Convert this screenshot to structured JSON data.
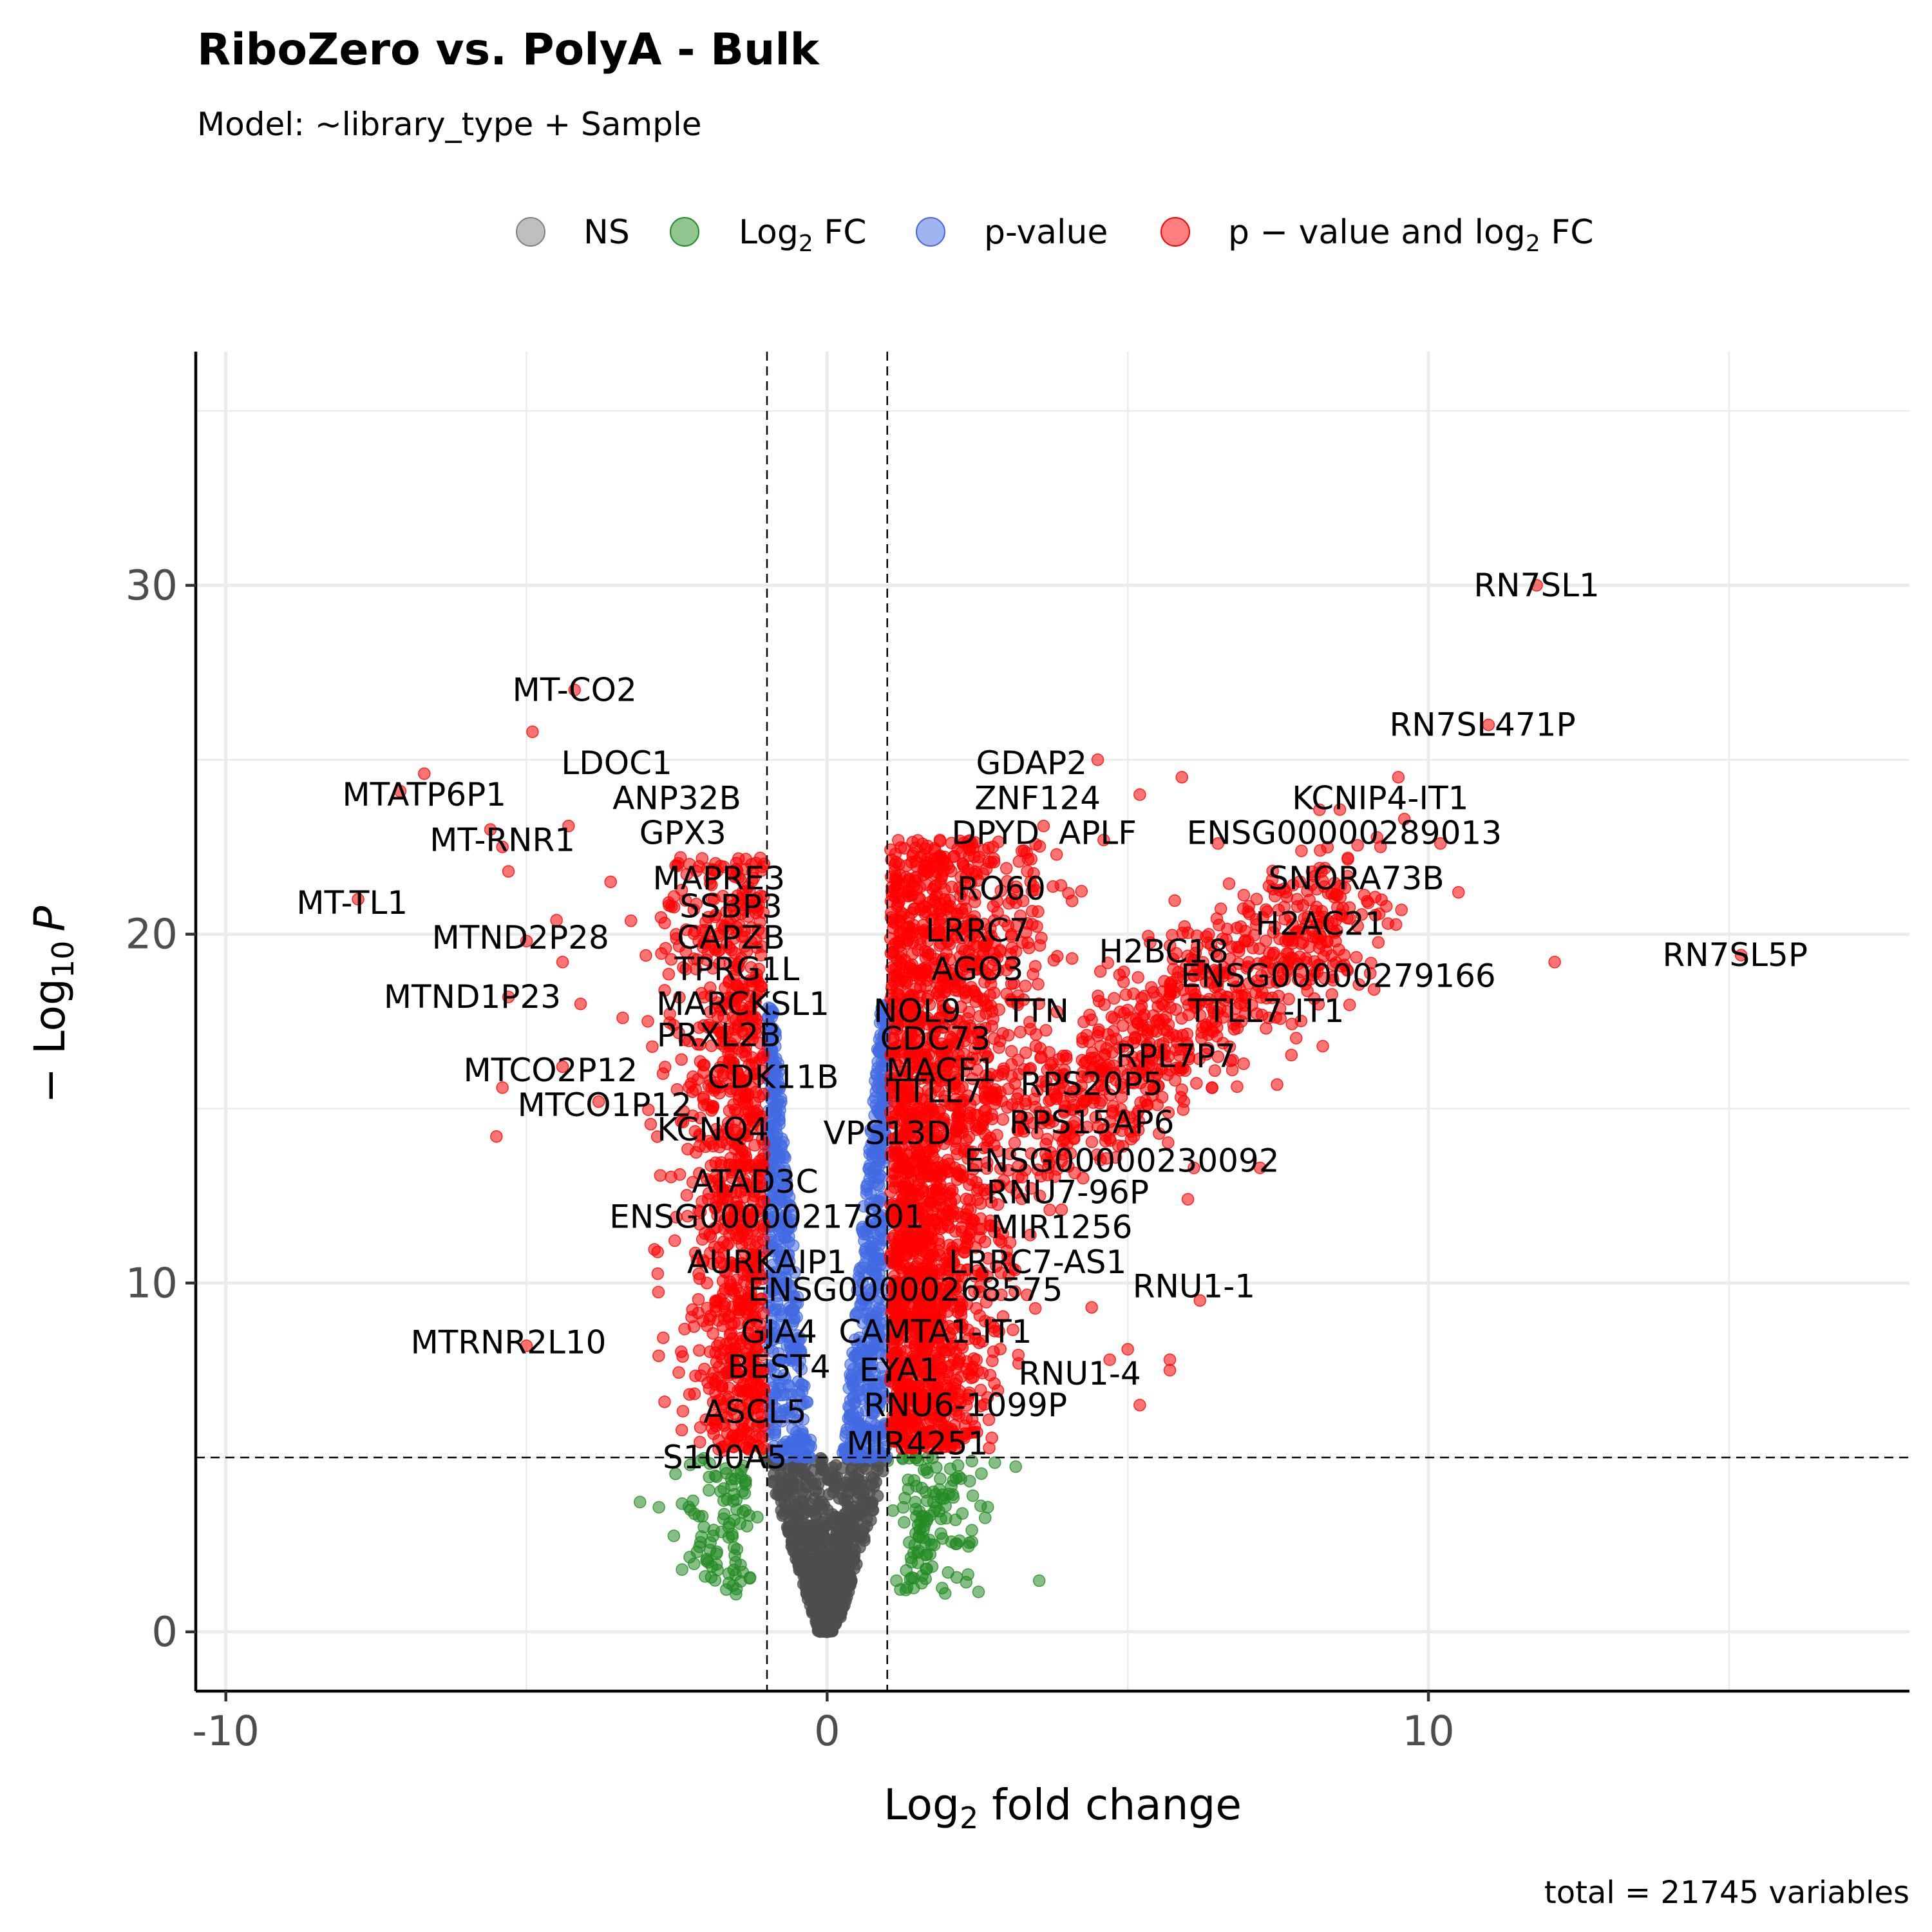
{
  "chart_data": {
    "type": "scatter",
    "title": "RiboZero vs. PolyA - Bulk",
    "subtitle": "Model: ~library_type + Sample",
    "caption": "total = 21745 variables",
    "xlabel_main": "Log",
    "xlabel_sub": "2",
    "xlabel_tail": " fold change",
    "ylabel_prefix": "− Log",
    "ylabel_sub": "10",
    "ylabel_italic": "P",
    "xlim": [
      -10.5,
      18
    ],
    "ylim": [
      -1.7,
      36.7
    ],
    "x_ticks": [
      -10,
      0,
      10
    ],
    "x_tick_labels": [
      "-10",
      "0",
      "10"
    ],
    "y_ticks": [
      0,
      10,
      20,
      30
    ],
    "y_tick_labels": [
      "0",
      "10",
      "20",
      "30"
    ],
    "thresholds": {
      "log2fc": [
        -1,
        1
      ],
      "neg_log10_p": 5
    },
    "grid": true,
    "legend_position": "top",
    "legend": [
      {
        "key": "ns",
        "label": "NS",
        "color": "#808080"
      },
      {
        "key": "fc",
        "label": "Log",
        "sub": "2",
        "tail": " FC",
        "color": "#228b22"
      },
      {
        "key": "p",
        "label": "p-value",
        "color": "#4169e1"
      },
      {
        "key": "both",
        "label": "p − value and log",
        "sub": "2",
        "tail": " FC",
        "color": "#ff0000"
      }
    ],
    "colors": {
      "ns": "#4d4d4d",
      "fc": "#228b22",
      "p": "#4169e1",
      "both": "#ff0000"
    },
    "points": [
      [
        11.8,
        30
      ],
      [
        11.0,
        26
      ],
      [
        9.5,
        24.5
      ],
      [
        9.6,
        23.3
      ],
      [
        10.2,
        22.6
      ],
      [
        10.5,
        21.2
      ],
      [
        9.3,
        20.8
      ],
      [
        12.1,
        19.2
      ],
      [
        15.2,
        19.4
      ],
      [
        -4.2,
        27
      ],
      [
        -4.9,
        25.8
      ],
      [
        -6.7,
        24.6
      ],
      [
        -7.1,
        24.1
      ],
      [
        -5.6,
        23
      ],
      [
        -4.3,
        23.1
      ],
      [
        -5.4,
        22.5
      ],
      [
        -5.3,
        21.8
      ],
      [
        -7.8,
        21
      ],
      [
        -3.6,
        21.5
      ],
      [
        -4.5,
        20.4
      ],
      [
        -5.0,
        19.8
      ],
      [
        -4.4,
        19.2
      ],
      [
        -5.3,
        18.2
      ],
      [
        -4.1,
        18
      ],
      [
        -5.4,
        15.6
      ],
      [
        -5.5,
        14.2
      ],
      [
        -5.0,
        8.2
      ],
      [
        -4.4,
        16.2
      ],
      [
        -3.4,
        17.6
      ],
      [
        -3.8,
        15.2
      ],
      [
        4.5,
        25.0
      ],
      [
        5.9,
        24.5
      ],
      [
        5.2,
        24.0
      ],
      [
        4.6,
        22.7
      ],
      [
        3.6,
        23.1
      ],
      [
        6.5,
        22.6
      ],
      [
        6.1,
        13.3
      ],
      [
        6.0,
        12.4
      ],
      [
        7.2,
        13.3
      ],
      [
        5.7,
        7.8
      ],
      [
        5.7,
        7.5
      ],
      [
        5.0,
        8.1
      ],
      [
        5.2,
        6.5
      ],
      [
        4.4,
        9.3
      ],
      [
        4.7,
        7.8
      ],
      [
        6.2,
        9.5
      ],
      [
        8.2,
        22.4
      ],
      [
        7.6,
        21.3
      ],
      [
        8.4,
        20.3
      ],
      [
        7.0,
        19.8
      ],
      [
        8.6,
        19.4
      ],
      [
        6.1,
        18.8
      ],
      [
        6.3,
        17.4
      ],
      [
        7.3,
        17.3
      ],
      [
        6.0,
        16.8
      ],
      [
        5.7,
        16.1
      ],
      [
        6.4,
        15.6
      ],
      [
        5.1,
        14.2
      ],
      [
        4.8,
        13.6
      ],
      [
        3.9,
        12.1
      ]
    ],
    "gene_labels": [
      {
        "text": "RN7SL1",
        "x": 11.8,
        "y": 30
      },
      {
        "text": "MT-CO2",
        "x": -4.2,
        "y": 27
      },
      {
        "text": "RN7SL471P",
        "x": 10.9,
        "y": 26
      },
      {
        "text": "LDOC1",
        "x": -3.5,
        "y": 24.9
      },
      {
        "text": "GDAP2",
        "x": 3.4,
        "y": 24.9
      },
      {
        "text": "MTATP6P1",
        "x": -6.7,
        "y": 24.0
      },
      {
        "text": "KCNIP4-IT1",
        "x": 9.2,
        "y": 23.9
      },
      {
        "text": "ANP32B",
        "x": -2.5,
        "y": 23.9
      },
      {
        "text": "ZNF124",
        "x": 3.5,
        "y": 23.9
      },
      {
        "text": "GPX3",
        "x": -2.4,
        "y": 22.9
      },
      {
        "text": "DPYD",
        "x": 2.8,
        "y": 22.9
      },
      {
        "text": "APLF",
        "x": 4.5,
        "y": 22.9
      },
      {
        "text": "ENSG00000289013",
        "x": 8.6,
        "y": 22.9
      },
      {
        "text": "MT-RNR1",
        "x": -5.4,
        "y": 22.7
      },
      {
        "text": "MAPRE3",
        "x": -1.8,
        "y": 21.6
      },
      {
        "text": "SNORA73B",
        "x": 8.8,
        "y": 21.6
      },
      {
        "text": "RO60",
        "x": 2.9,
        "y": 21.3
      },
      {
        "text": "SSBP3",
        "x": -1.6,
        "y": 20.8
      },
      {
        "text": "MT-TL1",
        "x": -7.9,
        "y": 20.9
      },
      {
        "text": "H2AC21",
        "x": 8.2,
        "y": 20.3
      },
      {
        "text": "LRRC7",
        "x": 2.5,
        "y": 20.1
      },
      {
        "text": "CAPZB",
        "x": -1.6,
        "y": 19.9
      },
      {
        "text": "MTND2P28",
        "x": -5.1,
        "y": 19.9
      },
      {
        "text": "H2BC18",
        "x": 5.6,
        "y": 19.5
      },
      {
        "text": "RN7SL5P",
        "x": 15.1,
        "y": 19.4
      },
      {
        "text": "TPRG1L",
        "x": -1.5,
        "y": 19.0
      },
      {
        "text": "AGO3",
        "x": 2.5,
        "y": 19.0
      },
      {
        "text": "ENSG00000279166",
        "x": 8.5,
        "y": 18.8
      },
      {
        "text": "MTND1P23",
        "x": -5.9,
        "y": 18.2
      },
      {
        "text": "MARCKSL1",
        "x": -1.4,
        "y": 18.0
      },
      {
        "text": "NOL9",
        "x": 1.5,
        "y": 17.8
      },
      {
        "text": "TTN",
        "x": 3.5,
        "y": 17.8
      },
      {
        "text": "TTLL7-IT1",
        "x": 7.3,
        "y": 17.8
      },
      {
        "text": "PRXL2B",
        "x": -1.8,
        "y": 17.1
      },
      {
        "text": "CDC73",
        "x": 1.8,
        "y": 17.0
      },
      {
        "text": "RPL7P7",
        "x": 5.8,
        "y": 16.5
      },
      {
        "text": "MTCO2P12",
        "x": -4.6,
        "y": 16.1
      },
      {
        "text": "MACF1",
        "x": 1.9,
        "y": 16.1
      },
      {
        "text": "CDK11B",
        "x": -0.9,
        "y": 15.9
      },
      {
        "text": "RPS20P5",
        "x": 4.4,
        "y": 15.7
      },
      {
        "text": "TTLL7",
        "x": 1.8,
        "y": 15.5
      },
      {
        "text": "MTCO1P12",
        "x": -3.7,
        "y": 15.1
      },
      {
        "text": "RPS15AP6",
        "x": 4.4,
        "y": 14.6
      },
      {
        "text": "KCNQ4",
        "x": -1.9,
        "y": 14.4
      },
      {
        "text": "VPS13D",
        "x": 1.0,
        "y": 14.3
      },
      {
        "text": "ENSG00000230092",
        "x": 4.9,
        "y": 13.5
      },
      {
        "text": "ATAD3C",
        "x": -1.2,
        "y": 12.9
      },
      {
        "text": "RNU7-96P",
        "x": 4.0,
        "y": 12.6
      },
      {
        "text": "ENSG00000217801",
        "x": -1.0,
        "y": 11.9
      },
      {
        "text": "MIR1256",
        "x": 3.9,
        "y": 11.6
      },
      {
        "text": "AURKAIP1",
        "x": -1.0,
        "y": 10.6
      },
      {
        "text": "LRRC7-AS1",
        "x": 3.5,
        "y": 10.6
      },
      {
        "text": "ENSG00000268575",
        "x": 1.3,
        "y": 9.8
      },
      {
        "text": "RNU1-1",
        "x": 6.1,
        "y": 9.9
      },
      {
        "text": "GJA4",
        "x": -0.8,
        "y": 8.6
      },
      {
        "text": "CAMTA1-IT1",
        "x": 1.8,
        "y": 8.6
      },
      {
        "text": "MTRNR2L10",
        "x": -5.3,
        "y": 8.3
      },
      {
        "text": "BEST4",
        "x": -0.8,
        "y": 7.6
      },
      {
        "text": "EYA1",
        "x": 1.2,
        "y": 7.5
      },
      {
        "text": "RNU1-4",
        "x": 4.2,
        "y": 7.4
      },
      {
        "text": "RNU6-1099P",
        "x": 2.3,
        "y": 6.5
      },
      {
        "text": "ASCL5",
        "x": -1.2,
        "y": 6.3
      },
      {
        "text": "MIR4251",
        "x": 1.5,
        "y": 5.4
      },
      {
        "text": "S100A5",
        "x": -1.7,
        "y": 5.0
      }
    ]
  }
}
